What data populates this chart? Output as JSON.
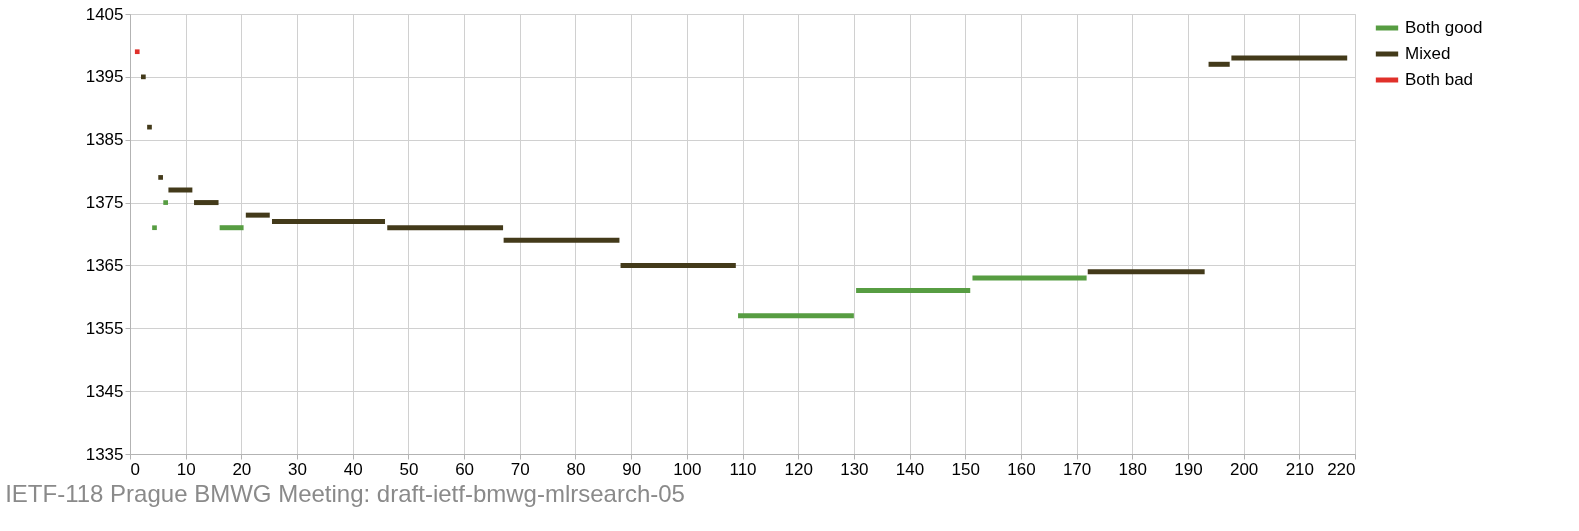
{
  "chart_data": {
    "type": "line",
    "series": [
      {
        "name": "Both good",
        "color": "#579d42",
        "x": [
          16.1,
          20.4,
          null,
          109.2,
          130.0,
          null,
          130.4,
          150.9,
          null,
          151.3,
          171.8
        ],
        "values": [
          1371,
          1371,
          null,
          1357,
          1357,
          null,
          1361,
          1361,
          null,
          1363,
          1363
        ]
      },
      {
        "name": "Mixed",
        "color": "#433a1a",
        "x": [
          6.9,
          11.2,
          null,
          11.5,
          15.9,
          null,
          20.8,
          25.1,
          null,
          25.5,
          45.8,
          null,
          46.2,
          67.0,
          null,
          67.1,
          87.9,
          null,
          88.1,
          108.8,
          null,
          172.0,
          193.0,
          null,
          193.7,
          197.5,
          null,
          197.8,
          218.6
        ],
        "values": [
          1377,
          1377,
          null,
          1375,
          1375,
          null,
          1373,
          1373,
          null,
          1372,
          1372,
          null,
          1371,
          1371,
          null,
          1369,
          1369,
          null,
          1365,
          1365,
          null,
          1364,
          1364,
          null,
          1397,
          1397,
          null,
          1398,
          1398
        ]
      },
      {
        "name": "Both bad",
        "type": "scatter",
        "marker": "square",
        "color": "#e0302a",
        "x": [
          1.3
        ],
        "values": [
          1399
        ]
      },
      {
        "type": "scatter",
        "marker": "square",
        "color": "#579d42",
        "x": [
          4.4,
          6.4
        ],
        "values": [
          1371,
          1375
        ]
      },
      {
        "type": "scatter",
        "marker": "square",
        "color": "#433a1a",
        "x": [
          2.4,
          3.5,
          5.5
        ],
        "values": [
          1395,
          1387,
          1379
        ]
      }
    ],
    "xlim": [
      0,
      220
    ],
    "xticks": [
      0,
      10,
      20,
      30,
      40,
      50,
      60,
      70,
      80,
      90,
      100,
      110,
      120,
      130,
      140,
      150,
      160,
      170,
      180,
      190,
      200,
      210,
      220
    ],
    "ylim": [
      1335,
      1405
    ],
    "yticks": [
      1335,
      1345,
      1355,
      1365,
      1375,
      1385,
      1395,
      1405
    ],
    "grid": true,
    "legend": "right",
    "line_style": "solid",
    "annotations": [
      "IETF-118 Prague BMWG Meeting: draft-ietf-bmwg-mlrsearch-05"
    ]
  }
}
